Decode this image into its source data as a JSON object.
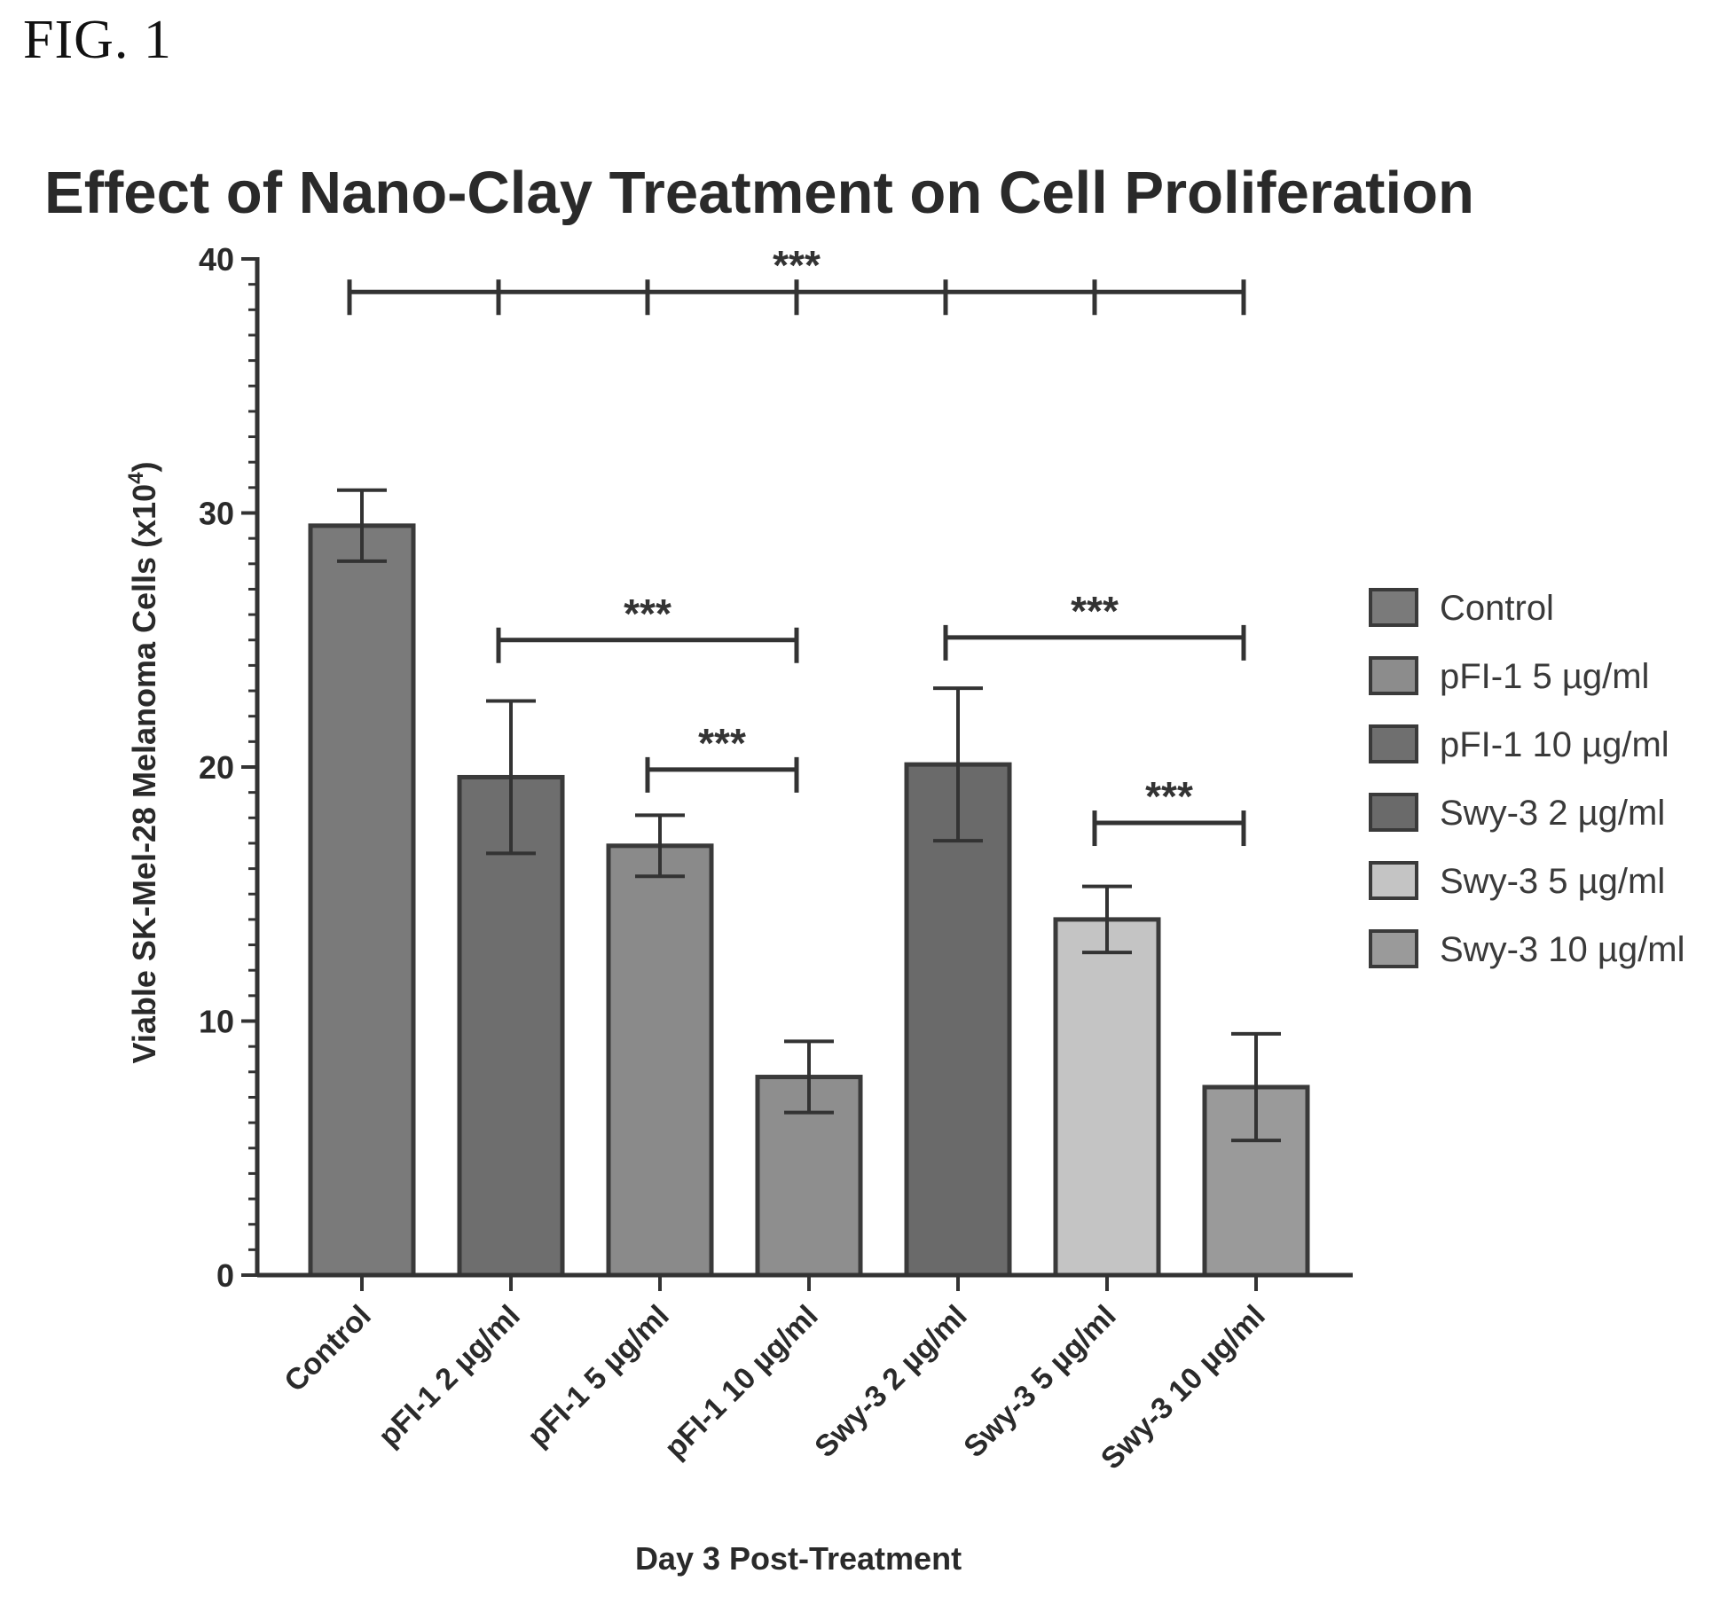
{
  "figure_label": "FIG. 1",
  "chart_data": {
    "type": "bar",
    "title": "Effect of Nano-Clay Treatment on Cell Proliferation",
    "xlabel": "Day 3 Post-Treatment",
    "ylabel": "Viable SK-Mel-28 Melanoma Cells (x10",
    "ylabel_superscript": "4",
    "ylabel_suffix": ")",
    "ylim": [
      0,
      40
    ],
    "yticks": [
      "0",
      "10",
      "20",
      "30",
      "40"
    ],
    "categories": [
      "Control",
      "pFI-1 2 µg/ml",
      "pFI-1 5 µg/ml",
      "pFI-1 10 µg/ml",
      "Swy-3 2 µg/ml",
      "Swy-3 5 µg/ml",
      "Swy-3 10 µg/ml"
    ],
    "values": [
      29.5,
      19.6,
      16.9,
      7.8,
      20.1,
      14.0,
      7.4
    ],
    "errors": [
      1.4,
      3.0,
      1.2,
      1.4,
      3.0,
      1.3,
      2.1
    ],
    "colors": [
      "#7a7a7a",
      "#6e6e6e",
      "#8a8a8a",
      "#8e8e8e",
      "#6a6a6a",
      "#c4c4c4",
      "#9a9a9a"
    ],
    "legend": {
      "position": "right",
      "entries": [
        {
          "label": "Control",
          "color": "#7a7a7a"
        },
        {
          "label": "pFI-1 5 µg/ml",
          "color": "#8c8c8c"
        },
        {
          "label": "pFI-1 10 µg/ml",
          "color": "#6f6f6f"
        },
        {
          "label": "Swy-3 2 µg/ml",
          "color": "#6a6a6a"
        },
        {
          "label": "Swy-3 5 µg/ml",
          "color": "#c4c4c4"
        },
        {
          "label": "Swy-3 10 µg/ml",
          "color": "#9a9a9a"
        }
      ]
    },
    "significance": [
      {
        "label": "***",
        "from": 0,
        "to": 6,
        "y": 38.7,
        "ticks": [
          0,
          1,
          2,
          3,
          4,
          5,
          6
        ]
      },
      {
        "label": "***",
        "from": 1,
        "to": 3,
        "y": 25.0,
        "ticks": [
          1,
          3
        ]
      },
      {
        "label": "***",
        "from": 2,
        "to": 3,
        "y": 19.9,
        "ticks": [
          2,
          3
        ]
      },
      {
        "label": "***",
        "from": 4,
        "to": 6,
        "y": 25.1,
        "ticks": [
          4,
          6
        ]
      },
      {
        "label": "***",
        "from": 5,
        "to": 6,
        "y": 17.8,
        "ticks": [
          5,
          6
        ]
      }
    ]
  }
}
